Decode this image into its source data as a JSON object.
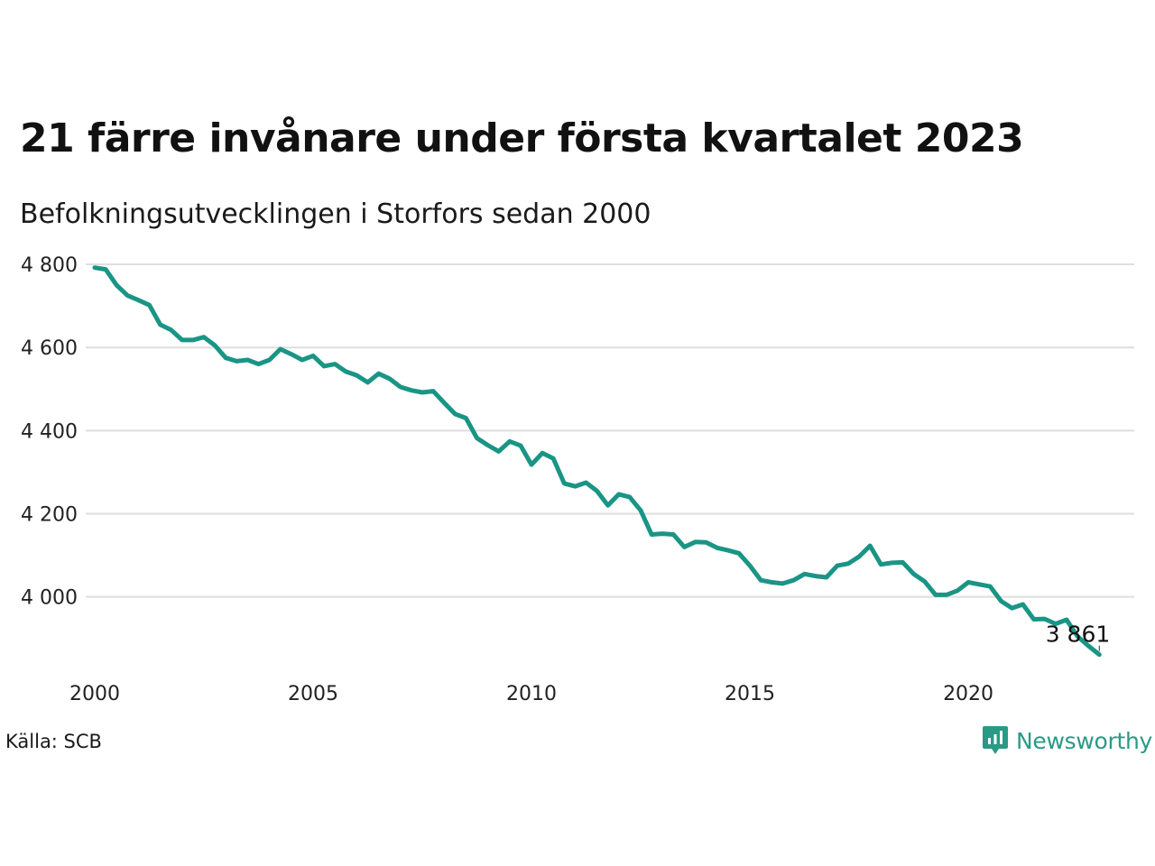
{
  "title": "21 färre invånare under första kvartalet 2023",
  "subtitle": "Befolkningsutvecklingen i Storfors sedan 2000",
  "source": "Källa: SCB",
  "brand": {
    "name": "Newsworthy",
    "icon": "newsworthy-logo-icon",
    "color": "#2a9a86"
  },
  "chart_data": {
    "type": "line",
    "line_color": "#1a9585",
    "grid": "horizontal",
    "xlim": [
      2000,
      2023.8
    ],
    "ylim": [
      3830,
      4850
    ],
    "xticks": [
      2000,
      2005,
      2010,
      2015,
      2020
    ],
    "xtick_labels": [
      "2000",
      "2005",
      "2010",
      "2015",
      "2020"
    ],
    "yticks": [
      4000,
      4200,
      4400,
      4600,
      4800
    ],
    "ytick_labels": [
      "4 000",
      "4 200",
      "4 400",
      "4 600",
      "4 800"
    ],
    "annotation": {
      "x": 2023.0,
      "y": 3861,
      "label": "3 861"
    },
    "series": [
      {
        "x": [
          2000.0,
          2000.25,
          2000.5,
          2000.75,
          2001.0,
          2001.25,
          2001.5,
          2001.75,
          2002.0,
          2002.25,
          2002.5,
          2002.75,
          2003.0,
          2003.25,
          2003.5,
          2003.75,
          2004.0,
          2004.25,
          2004.5,
          2004.75,
          2005.0,
          2005.25,
          2005.5,
          2005.75,
          2006.0,
          2006.25,
          2006.5,
          2006.75,
          2007.0,
          2007.25,
          2007.5,
          2007.75,
          2008.0,
          2008.25,
          2008.5,
          2008.75,
          2009.0,
          2009.25,
          2009.5,
          2009.75,
          2010.0,
          2010.25,
          2010.5,
          2010.75,
          2011.0,
          2011.25,
          2011.5,
          2011.75,
          2012.0,
          2012.25,
          2012.5,
          2012.75,
          2013.0,
          2013.25,
          2013.5,
          2013.75,
          2014.0,
          2014.25,
          2014.5,
          2014.75,
          2015.0,
          2015.25,
          2015.5,
          2015.75,
          2016.0,
          2016.25,
          2016.5,
          2016.75,
          2017.0,
          2017.25,
          2017.5,
          2017.75,
          2018.0,
          2018.25,
          2018.5,
          2018.75,
          2019.0,
          2019.25,
          2019.5,
          2019.75,
          2020.0,
          2020.25,
          2020.5,
          2020.75,
          2021.0,
          2021.25,
          2021.5,
          2021.75,
          2022.0,
          2022.25,
          2022.5,
          2022.75,
          2023.0
        ],
        "y": [
          4792,
          4788,
          4750,
          4725,
          4714,
          4702,
          4655,
          4642,
          4618,
          4618,
          4625,
          4605,
          4575,
          4567,
          4570,
          4560,
          4570,
          4596,
          4584,
          4570,
          4580,
          4555,
          4560,
          4542,
          4533,
          4516,
          4537,
          4525,
          4505,
          4497,
          4492,
          4495,
          4467,
          4440,
          4430,
          4382,
          4365,
          4350,
          4374,
          4364,
          4318,
          4346,
          4333,
          4273,
          4266,
          4275,
          4255,
          4220,
          4247,
          4240,
          4208,
          4150,
          4152,
          4150,
          4120,
          4132,
          4131,
          4118,
          4112,
          4105,
          4075,
          4040,
          4035,
          4032,
          4040,
          4055,
          4050,
          4047,
          4075,
          4080,
          4097,
          4123,
          4078,
          4082,
          4083,
          4055,
          4037,
          4005,
          4005,
          4015,
          4035,
          4030,
          4025,
          3990,
          3973,
          3982,
          3946,
          3947,
          3935,
          3945,
          3905,
          3882,
          3861
        ]
      }
    ]
  }
}
